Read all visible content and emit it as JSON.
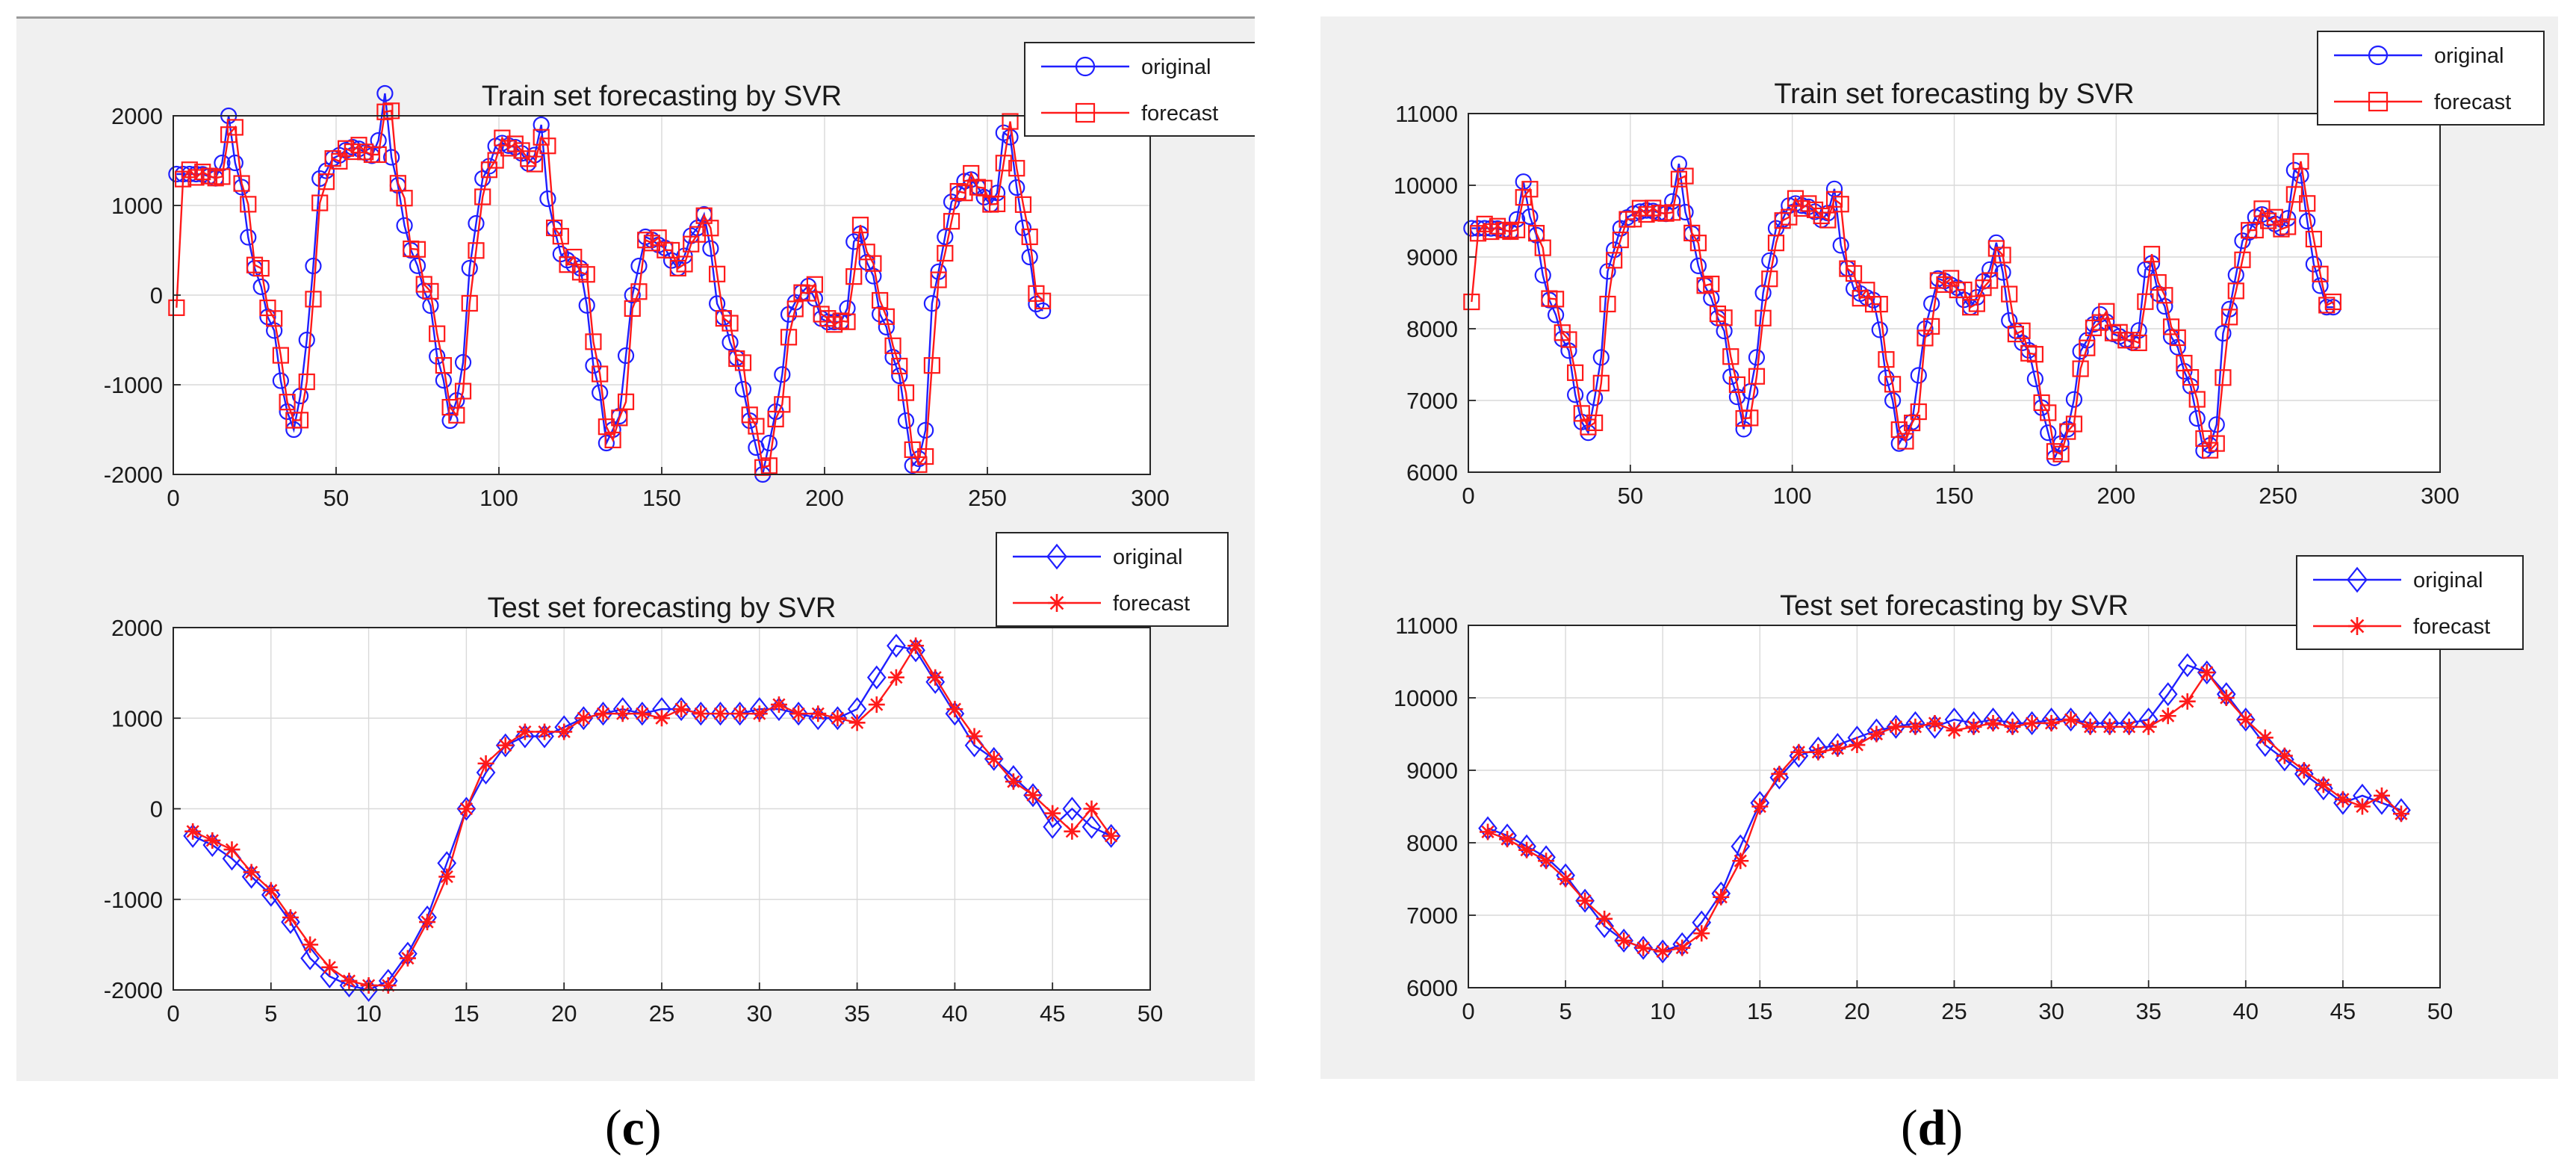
{
  "captions": {
    "c_open": "(",
    "c_letter": "c",
    "c_close": ")",
    "d_open": "(",
    "d_letter": "d",
    "d_close": ")"
  },
  "colors": {
    "original": "#1f1fff",
    "forecast": "#ff1a1a",
    "panel_bg": "#f0f0f0",
    "grid": "#d9d9d9"
  },
  "chart_data": [
    {
      "panel": "c",
      "type": "line",
      "title": "Train set forecasting by SVR",
      "xlim": [
        0,
        300
      ],
      "ylim": [
        -2000,
        2000
      ],
      "xticks": [
        0,
        50,
        100,
        150,
        200,
        250,
        300
      ],
      "yticks": [
        -2000,
        -1000,
        0,
        1000,
        2000
      ],
      "grid": true,
      "legend_position": "top-right",
      "series": [
        {
          "name": "original",
          "marker": "circle"
        },
        {
          "name": "forecast",
          "marker": "square"
        }
      ],
      "x_range": [
        1,
        268
      ],
      "keypoints": [
        [
          1,
          1350
        ],
        [
          8,
          1350
        ],
        [
          14,
          1300
        ],
        [
          17,
          2000
        ],
        [
          20,
          1300
        ],
        [
          25,
          300
        ],
        [
          30,
          -300
        ],
        [
          35,
          -1300
        ],
        [
          37,
          -1500
        ],
        [
          40,
          -1000
        ],
        [
          42,
          0
        ],
        [
          45,
          1300
        ],
        [
          50,
          1550
        ],
        [
          55,
          1650
        ],
        [
          62,
          1550
        ],
        [
          65,
          2250
        ],
        [
          68,
          1300
        ],
        [
          73,
          500
        ],
        [
          78,
          0
        ],
        [
          82,
          -800
        ],
        [
          85,
          -1400
        ],
        [
          88,
          -1100
        ],
        [
          91,
          300
        ],
        [
          95,
          1300
        ],
        [
          100,
          1700
        ],
        [
          105,
          1650
        ],
        [
          110,
          1450
        ],
        [
          113,
          1900
        ],
        [
          116,
          800
        ],
        [
          120,
          400
        ],
        [
          125,
          300
        ],
        [
          130,
          -900
        ],
        [
          133,
          -1650
        ],
        [
          137,
          -1350
        ],
        [
          141,
          0
        ],
        [
          145,
          650
        ],
        [
          150,
          550
        ],
        [
          155,
          300
        ],
        [
          160,
          700
        ],
        [
          163,
          900
        ],
        [
          168,
          -200
        ],
        [
          173,
          -700
        ],
        [
          177,
          -1400
        ],
        [
          181,
          -2000
        ],
        [
          185,
          -1300
        ],
        [
          190,
          -100
        ],
        [
          195,
          100
        ],
        [
          200,
          -300
        ],
        [
          206,
          -300
        ],
        [
          210,
          750
        ],
        [
          214,
          300
        ],
        [
          218,
          -300
        ],
        [
          223,
          -900
        ],
        [
          227,
          -1900
        ],
        [
          230,
          -1800
        ],
        [
          234,
          200
        ],
        [
          240,
          1100
        ],
        [
          244,
          1300
        ],
        [
          252,
          1000
        ],
        [
          256,
          1950
        ],
        [
          259,
          1200
        ],
        [
          262,
          600
        ],
        [
          265,
          -100
        ],
        [
          268,
          -200
        ]
      ],
      "forecast_lag": 1
    },
    {
      "panel": "c",
      "type": "line",
      "title": "Test set forecasting by SVR",
      "xlim": [
        0,
        50
      ],
      "ylim": [
        -2000,
        2000
      ],
      "xticks": [
        0,
        5,
        10,
        15,
        20,
        25,
        30,
        35,
        40,
        45,
        50
      ],
      "yticks": [
        -2000,
        -1000,
        0,
        1000,
        2000
      ],
      "grid": true,
      "legend_position": "top-right",
      "x": [
        1,
        2,
        3,
        4,
        5,
        6,
        7,
        8,
        9,
        10,
        11,
        12,
        13,
        14,
        15,
        16,
        17,
        18,
        19,
        20,
        21,
        22,
        23,
        24,
        25,
        26,
        27,
        28,
        29,
        30,
        31,
        32,
        33,
        34,
        35,
        36,
        37,
        38,
        39,
        40,
        41,
        42,
        43,
        44,
        45,
        46,
        47,
        48
      ],
      "series": [
        {
          "name": "original",
          "marker": "diamond",
          "values": [
            -300,
            -400,
            -550,
            -750,
            -950,
            -1250,
            -1650,
            -1850,
            -1950,
            -2000,
            -1900,
            -1600,
            -1200,
            -600,
            0,
            400,
            700,
            800,
            800,
            900,
            1000,
            1050,
            1100,
            1050,
            1100,
            1100,
            1050,
            1050,
            1050,
            1100,
            1100,
            1050,
            1000,
            1000,
            1100,
            1450,
            1800,
            1750,
            1400,
            1050,
            700,
            550,
            350,
            150,
            -200,
            0,
            -200,
            -300
          ]
        },
        {
          "name": "forecast",
          "marker": "asterisk",
          "values": [
            -250,
            -350,
            -450,
            -700,
            -900,
            -1200,
            -1500,
            -1750,
            -1900,
            -1950,
            -1950,
            -1650,
            -1250,
            -750,
            0,
            500,
            700,
            850,
            850,
            850,
            1000,
            1050,
            1050,
            1050,
            1000,
            1100,
            1050,
            1050,
            1050,
            1050,
            1150,
            1050,
            1050,
            1000,
            950,
            1150,
            1450,
            1800,
            1450,
            1100,
            800,
            550,
            300,
            150,
            -50,
            -250,
            0,
            -300
          ]
        }
      ]
    },
    {
      "panel": "d",
      "type": "line",
      "title": "Train set forecasting by SVR",
      "xlim": [
        0,
        300
      ],
      "ylim": [
        6000,
        11000
      ],
      "xticks": [
        0,
        50,
        100,
        150,
        200,
        250,
        300
      ],
      "yticks": [
        6000,
        7000,
        8000,
        9000,
        10000,
        11000
      ],
      "grid": true,
      "legend_position": "top-right",
      "series": [
        {
          "name": "original",
          "marker": "circle"
        },
        {
          "name": "forecast",
          "marker": "square"
        }
      ],
      "x_range": [
        1,
        268
      ],
      "keypoints": [
        [
          1,
          9400
        ],
        [
          8,
          9400
        ],
        [
          14,
          9350
        ],
        [
          17,
          10050
        ],
        [
          20,
          9400
        ],
        [
          25,
          8400
        ],
        [
          30,
          7800
        ],
        [
          35,
          6700
        ],
        [
          37,
          6550
        ],
        [
          40,
          7200
        ],
        [
          43,
          8800
        ],
        [
          47,
          9400
        ],
        [
          50,
          9600
        ],
        [
          55,
          9650
        ],
        [
          62,
          9600
        ],
        [
          65,
          10300
        ],
        [
          68,
          9400
        ],
        [
          73,
          8600
        ],
        [
          78,
          8100
        ],
        [
          82,
          7200
        ],
        [
          85,
          6600
        ],
        [
          88,
          7300
        ],
        [
          91,
          8500
        ],
        [
          95,
          9400
        ],
        [
          100,
          9750
        ],
        [
          105,
          9700
        ],
        [
          110,
          9500
        ],
        [
          113,
          9950
        ],
        [
          116,
          8900
        ],
        [
          120,
          8500
        ],
        [
          125,
          8400
        ],
        [
          130,
          7200
        ],
        [
          133,
          6400
        ],
        [
          137,
          6700
        ],
        [
          141,
          8000
        ],
        [
          145,
          8700
        ],
        [
          150,
          8600
        ],
        [
          155,
          8300
        ],
        [
          160,
          8700
        ],
        [
          163,
          9200
        ],
        [
          168,
          8000
        ],
        [
          173,
          7700
        ],
        [
          177,
          6900
        ],
        [
          181,
          6200
        ],
        [
          185,
          6600
        ],
        [
          190,
          7800
        ],
        [
          195,
          8200
        ],
        [
          200,
          7900
        ],
        [
          206,
          7800
        ],
        [
          210,
          9000
        ],
        [
          214,
          8400
        ],
        [
          218,
          7800
        ],
        [
          223,
          7200
        ],
        [
          227,
          6300
        ],
        [
          230,
          6400
        ],
        [
          234,
          8200
        ],
        [
          240,
          9300
        ],
        [
          244,
          9600
        ],
        [
          252,
          9400
        ],
        [
          256,
          10350
        ],
        [
          259,
          9500
        ],
        [
          262,
          8700
        ],
        [
          265,
          8300
        ],
        [
          268,
          8300
        ]
      ],
      "forecast_lag": 1
    },
    {
      "panel": "d",
      "type": "line",
      "title": "Test set forecasting by SVR",
      "xlim": [
        0,
        50
      ],
      "ylim": [
        6000,
        11000
      ],
      "xticks": [
        0,
        5,
        10,
        15,
        20,
        25,
        30,
        35,
        40,
        45,
        50
      ],
      "yticks": [
        6000,
        7000,
        8000,
        9000,
        10000,
        11000
      ],
      "grid": true,
      "legend_position": "top-right",
      "x": [
        1,
        2,
        3,
        4,
        5,
        6,
        7,
        8,
        9,
        10,
        11,
        12,
        13,
        14,
        15,
        16,
        17,
        18,
        19,
        20,
        21,
        22,
        23,
        24,
        25,
        26,
        27,
        28,
        29,
        30,
        31,
        32,
        33,
        34,
        35,
        36,
        37,
        38,
        39,
        40,
        41,
        42,
        43,
        44,
        45,
        46,
        47,
        48
      ],
      "series": [
        {
          "name": "original",
          "marker": "diamond",
          "values": [
            8200,
            8100,
            7950,
            7800,
            7550,
            7200,
            6850,
            6650,
            6550,
            6500,
            6600,
            6900,
            7300,
            7950,
            8550,
            8900,
            9200,
            9300,
            9350,
            9450,
            9550,
            9600,
            9650,
            9600,
            9700,
            9650,
            9700,
            9650,
            9650,
            9700,
            9700,
            9650,
            9650,
            9650,
            9700,
            10050,
            10450,
            10350,
            10050,
            9700,
            9350,
            9150,
            8950,
            8750,
            8550,
            8650,
            8550,
            8450
          ]
        },
        {
          "name": "forecast",
          "marker": "asterisk",
          "values": [
            8150,
            8050,
            7900,
            7750,
            7500,
            7200,
            6950,
            6650,
            6550,
            6500,
            6550,
            6750,
            7250,
            7750,
            8500,
            8950,
            9250,
            9250,
            9300,
            9350,
            9500,
            9600,
            9600,
            9650,
            9550,
            9600,
            9650,
            9600,
            9650,
            9650,
            9700,
            9600,
            9600,
            9600,
            9600,
            9750,
            9950,
            10350,
            10000,
            9700,
            9450,
            9200,
            9000,
            8800,
            8600,
            8500,
            8650,
            8400
          ]
        }
      ]
    }
  ]
}
